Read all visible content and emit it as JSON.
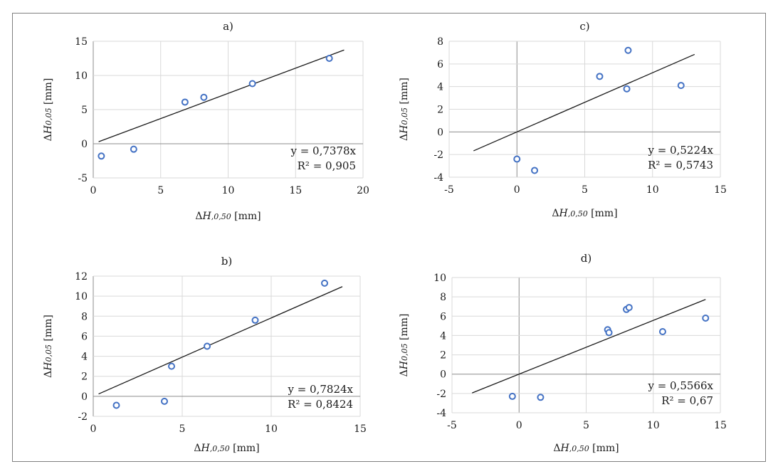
{
  "chart_data": [
    {
      "panel": "a",
      "type": "scatter",
      "title": "a)",
      "xlabel": {
        "prefix": "Δ",
        "var": "H",
        "sub": ",0,50",
        "unit": " [mm]"
      },
      "ylabel": {
        "prefix": "Δ",
        "var": "H",
        "sub": "0,05",
        "unit": " [mm]"
      },
      "xlim": [
        0,
        20
      ],
      "ylim": [
        -5,
        15
      ],
      "xticks": [
        0,
        5,
        10,
        15,
        20
      ],
      "yticks": [
        -5,
        0,
        5,
        10,
        15
      ],
      "xtick_labels": [
        "0",
        "5",
        "10",
        "15",
        "20"
      ],
      "ytick_labels": [
        "-5",
        "0",
        "5",
        "10",
        "15"
      ],
      "grid": true,
      "points": [
        [
          0.6,
          -1.8
        ],
        [
          3.0,
          -0.8
        ],
        [
          6.8,
          6.1
        ],
        [
          8.2,
          6.8
        ],
        [
          11.8,
          8.8
        ],
        [
          17.5,
          12.5
        ]
      ],
      "trendline": {
        "slope": 0.7378,
        "x_range": [
          0.4,
          18.6
        ]
      },
      "annotation": {
        "equation": "y = 0,7378x",
        "r2_label": "R² = 0,905"
      }
    },
    {
      "panel": "c",
      "type": "scatter",
      "title": "c)",
      "xlabel": {
        "prefix": "Δ",
        "var": "H",
        "sub": ",0,50",
        "unit": " [mm]"
      },
      "ylabel": {
        "prefix": "Δ",
        "var": "H",
        "sub": "0,05",
        "unit": " [mm]"
      },
      "xlim": [
        -5,
        15
      ],
      "ylim": [
        -4,
        8
      ],
      "xticks": [
        -5,
        0,
        5,
        10,
        15
      ],
      "yticks": [
        -4,
        -2,
        0,
        2,
        4,
        6,
        8
      ],
      "xtick_labels": [
        "-5",
        "0",
        "5",
        "10",
        "15"
      ],
      "ytick_labels": [
        "-4",
        "-2",
        "0",
        "2",
        "4",
        "6",
        "8"
      ],
      "grid": true,
      "points": [
        [
          0.0,
          -2.4
        ],
        [
          1.3,
          -3.4
        ],
        [
          6.1,
          4.9
        ],
        [
          8.1,
          3.8
        ],
        [
          8.2,
          7.2
        ],
        [
          12.1,
          4.1
        ]
      ],
      "trendline": {
        "slope": 0.5224,
        "x_range": [
          -3.2,
          13.1
        ]
      },
      "annotation": {
        "equation": "y = 0,5224x",
        "r2_label": "R² = 0,5743"
      }
    },
    {
      "panel": "b",
      "type": "scatter",
      "title": "b)",
      "xlabel": {
        "prefix": "Δ",
        "var": "H",
        "sub": ",0,50",
        "unit": " [mm]"
      },
      "ylabel": {
        "prefix": "Δ",
        "var": "H",
        "sub": "0,05",
        "unit": " [mm]"
      },
      "xlim": [
        0,
        15
      ],
      "ylim": [
        -2,
        12
      ],
      "xticks": [
        0,
        5,
        10,
        15
      ],
      "yticks": [
        -2,
        0,
        2,
        4,
        6,
        8,
        10,
        12
      ],
      "xtick_labels": [
        "0",
        "5",
        "10",
        "15"
      ],
      "ytick_labels": [
        "-2",
        "0",
        "2",
        "4",
        "6",
        "8",
        "10",
        "12"
      ],
      "grid": true,
      "points": [
        [
          1.3,
          -0.9
        ],
        [
          4.0,
          -0.5
        ],
        [
          4.4,
          3.0
        ],
        [
          6.4,
          5.0
        ],
        [
          9.1,
          7.6
        ],
        [
          13.0,
          11.3
        ]
      ],
      "trendline": {
        "slope": 0.7824,
        "x_range": [
          0.3,
          14.0
        ]
      },
      "annotation": {
        "equation": "y = 0,7824x",
        "r2_label": "R² = 0,8424"
      }
    },
    {
      "panel": "d",
      "type": "scatter",
      "title": "d)",
      "xlabel": {
        "prefix": "Δ",
        "var": "H",
        "sub": ",0,50",
        "unit": " [mm]"
      },
      "ylabel": {
        "prefix": "Δ",
        "var": "H",
        "sub": "0,05",
        "unit": " [mm]"
      },
      "xlim": [
        -5,
        15
      ],
      "ylim": [
        -4,
        10
      ],
      "xticks": [
        -5,
        0,
        5,
        10,
        15
      ],
      "yticks": [
        -4,
        -2,
        0,
        2,
        4,
        6,
        8,
        10
      ],
      "xtick_labels": [
        "-5",
        "0",
        "5",
        "10",
        "15"
      ],
      "ytick_labels": [
        "-4",
        "-2",
        "0",
        "2",
        "4",
        "6",
        "8",
        "10"
      ],
      "grid": true,
      "points": [
        [
          -0.5,
          -2.3
        ],
        [
          1.6,
          -2.4
        ],
        [
          6.6,
          4.6
        ],
        [
          6.7,
          4.3
        ],
        [
          8.0,
          6.7
        ],
        [
          8.2,
          6.9
        ],
        [
          10.7,
          4.4
        ],
        [
          13.9,
          5.8
        ]
      ],
      "trendline": {
        "slope": 0.5566,
        "x_range": [
          -3.5,
          13.9
        ]
      },
      "annotation": {
        "equation": "y = 0,5566x",
        "r2_label": "R² = 0,67"
      }
    }
  ],
  "colors": {
    "marker": "#4472c4",
    "trendline": "#1a1a1a",
    "grid": "#d9d9d9",
    "axis_zero": "#8c8c8c",
    "frame": "#7f7f7f"
  }
}
